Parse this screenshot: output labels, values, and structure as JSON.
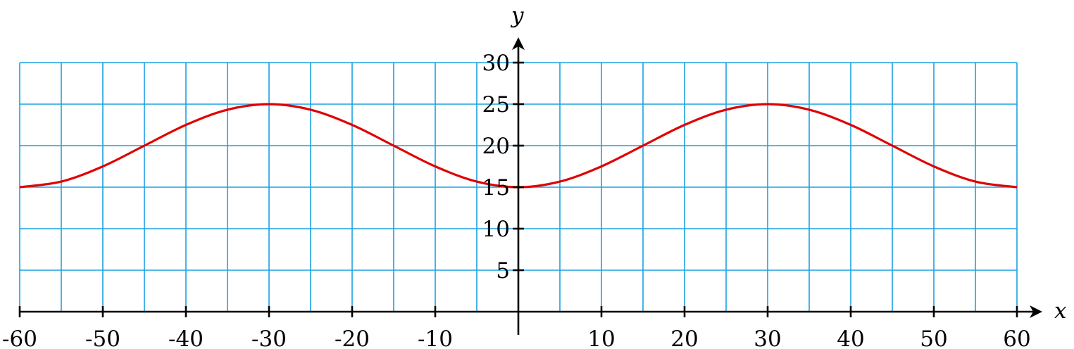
{
  "chart_data": {
    "type": "line",
    "title": "",
    "xlabel": "x",
    "ylabel": "y",
    "xlim": [
      -60,
      60
    ],
    "ylim": [
      0,
      30
    ],
    "x_ticks": [
      -60,
      -50,
      -40,
      -30,
      -20,
      -10,
      10,
      20,
      30,
      40,
      50,
      60
    ],
    "x_tick_labels": [
      "-60",
      "-50",
      "-40",
      "-30",
      "-20",
      "-10",
      "10",
      "20",
      "30",
      "40",
      "50",
      "60"
    ],
    "y_ticks": [
      5,
      10,
      15,
      20,
      25,
      30
    ],
    "y_tick_labels": [
      "5",
      "10",
      "15",
      "20",
      "25",
      "30"
    ],
    "grid": true,
    "grid_x_step": 5,
    "grid_y_step": 5,
    "grid_color": "#1ba1e2",
    "series": [
      {
        "color": "#e00000",
        "x": [
          -60,
          -55,
          -50,
          -45,
          -40,
          -35,
          -30,
          -25,
          -20,
          -15,
          -10,
          -5,
          0,
          5,
          10,
          15,
          20,
          25,
          30,
          35,
          40,
          45,
          50,
          55,
          60
        ],
        "y": [
          15,
          15.67,
          17.5,
          20,
          22.5,
          24.33,
          25,
          24.33,
          22.5,
          20,
          17.5,
          15.67,
          15,
          15.67,
          17.5,
          20,
          22.5,
          24.33,
          25,
          24.33,
          22.5,
          20,
          17.5,
          15.67,
          15
        ]
      }
    ]
  }
}
